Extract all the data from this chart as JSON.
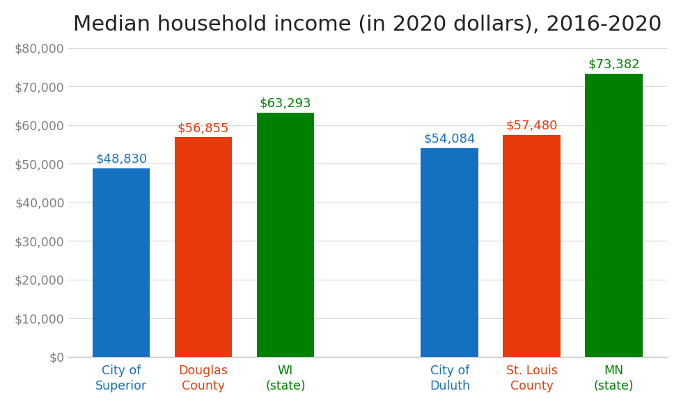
{
  "title": "Median household income (in 2020 dollars), 2016-2020",
  "categories": [
    "City of\nSuperior",
    "Douglas\nCounty",
    "WI\n(state)",
    "City of\nDuluth",
    "St. Louis\nCounty",
    "MN\n(state)"
  ],
  "values": [
    48830,
    56855,
    63293,
    54084,
    57480,
    73382
  ],
  "bar_colors": [
    "#1470c0",
    "#e83a0a",
    "#008000",
    "#1470c0",
    "#e83a0a",
    "#008000"
  ],
  "label_colors": [
    "#1470c0",
    "#e83a0a",
    "#008000",
    "#1470c0",
    "#e83a0a",
    "#008000"
  ],
  "tick_label_colors": [
    "#1470c0",
    "#e83a0a",
    "#008000",
    "#1470c0",
    "#e83a0a",
    "#008000"
  ],
  "labels": [
    "$48,830",
    "$56,855",
    "$63,293",
    "$54,084",
    "$57,480",
    "$73,382"
  ],
  "ylim": [
    0,
    80000
  ],
  "yticks": [
    0,
    10000,
    20000,
    30000,
    40000,
    50000,
    60000,
    70000,
    80000
  ],
  "ytick_labels": [
    "$0",
    "$10,000",
    "$20,000",
    "$30,000",
    "$40,000",
    "$50,000",
    "$60,000",
    "$70,000",
    "$80,000"
  ],
  "title_fontsize": 22,
  "bar_width": 0.7,
  "label_fontsize": 13,
  "tick_label_fontsize": 12.5,
  "x_positions": [
    0,
    1,
    2,
    4,
    5,
    6
  ],
  "background_color": "#ffffff",
  "ytick_color": "#7f7f7f",
  "spine_color": "#c0c0c0",
  "grid_color": "#d8d8d8"
}
